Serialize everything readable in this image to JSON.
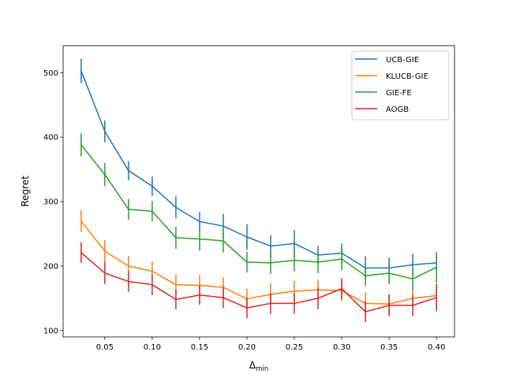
{
  "chart_data": {
    "type": "line",
    "xlabel_main": "Δ",
    "xlabel_sub": "min",
    "ylabel": "Regret",
    "xlim": [
      0.006,
      0.419
    ],
    "ylim": [
      90,
      542
    ],
    "x_ticks": [
      0.05,
      0.1,
      0.15,
      0.2,
      0.25,
      0.3,
      0.35,
      0.4
    ],
    "x_tick_labels": [
      "0.05",
      "0.10",
      "0.15",
      "0.20",
      "0.25",
      "0.30",
      "0.35",
      "0.40"
    ],
    "y_ticks": [
      100,
      200,
      300,
      400,
      500
    ],
    "y_tick_labels": [
      "100",
      "200",
      "300",
      "400",
      "500"
    ],
    "grid": false,
    "legend_position": "top-right",
    "x": [
      0.025,
      0.05,
      0.075,
      0.1,
      0.125,
      0.15,
      0.175,
      0.2,
      0.225,
      0.25,
      0.275,
      0.3,
      0.325,
      0.35,
      0.375,
      0.4
    ],
    "series": [
      {
        "name": "UCB-GIE",
        "color": "#1f77b4",
        "values": [
          503,
          409,
          348,
          324,
          291,
          269,
          262,
          245,
          231,
          235,
          217,
          220,
          197,
          197,
          202,
          205
        ],
        "errors": [
          19,
          17,
          15,
          15,
          17,
          15,
          19,
          20,
          17,
          21,
          14,
          15,
          18,
          16,
          17,
          13
        ]
      },
      {
        "name": "KLUCB-GIE",
        "color": "#ff7f0e",
        "values": [
          270,
          223,
          200,
          192,
          171,
          170,
          167,
          149,
          156,
          161,
          163,
          162,
          142,
          141,
          150,
          154
        ],
        "errors": [
          17,
          17,
          16,
          15,
          16,
          16,
          16,
          16,
          17,
          16,
          16,
          16,
          17,
          15,
          15,
          18
        ]
      },
      {
        "name": "GIE-FE",
        "color": "#2ca02c",
        "values": [
          388,
          342,
          288,
          285,
          244,
          242,
          239,
          206,
          205,
          209,
          206,
          211,
          185,
          189,
          180,
          198
        ],
        "errors": [
          18,
          18,
          16,
          16,
          17,
          18,
          18,
          16,
          17,
          17,
          17,
          17,
          16,
          17,
          17,
          24
        ]
      },
      {
        "name": "AOGB",
        "color": "#d62728",
        "values": [
          221,
          189,
          176,
          171,
          148,
          155,
          151,
          135,
          142,
          142,
          150,
          165,
          129,
          139,
          139,
          151
        ],
        "errors": [
          16,
          17,
          16,
          16,
          15,
          15,
          16,
          16,
          16,
          16,
          17,
          16,
          16,
          17,
          17,
          21
        ]
      }
    ]
  }
}
